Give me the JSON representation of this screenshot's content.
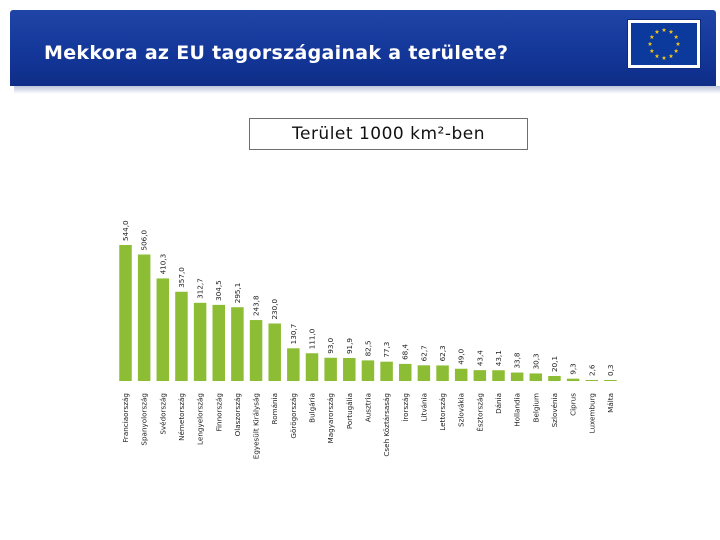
{
  "header": {
    "title": "Mekkora az EU tagországainak a területe?",
    "flag_icon": "eu-flag-icon"
  },
  "colors": {
    "header_blue": "#14379a",
    "bar_green": "#8cbd35",
    "flag_star": "#f2c417",
    "flag_blue": "#0b3a9c"
  },
  "chart_data": {
    "type": "bar",
    "title": "Terület 1000 km²-ben",
    "categories": [
      "Franciaország",
      "Spanyolország",
      "Svédország",
      "Németország",
      "Lengyelország",
      "Finnország",
      "Olaszország",
      "Egyesült Királyság",
      "Románia",
      "Görögország",
      "Bulgária",
      "Magyarország",
      "Portugália",
      "Ausztria",
      "Cseh Köztársaság",
      "Írország",
      "Litvánia",
      "Lettország",
      "Szlovákia",
      "Észtország",
      "Dánia",
      "Hollandia",
      "Belgium",
      "Szlovénia",
      "Ciprus",
      "Luxemburg",
      "Málta"
    ],
    "values": [
      544.0,
      506.0,
      410.3,
      357.0,
      312.7,
      304.5,
      295.1,
      243.8,
      230.0,
      130.7,
      111.0,
      93.0,
      91.9,
      82.5,
      77.3,
      68.4,
      62.7,
      62.3,
      49.0,
      43.4,
      43.1,
      33.8,
      30.3,
      20.1,
      9.3,
      2.6,
      0.3
    ],
    "value_labels": [
      "544,0",
      "506,0",
      "410,3",
      "357,0",
      "312,7",
      "304,5",
      "295,1",
      "243,8",
      "230,0",
      "130,7",
      "111,0",
      "93,0",
      "91,9",
      "82,5",
      "77,3",
      "68,4",
      "62,7",
      "62,3",
      "49,0",
      "43,4",
      "43,1",
      "33,8",
      "30,3",
      "20,1",
      "9,3",
      "2,6",
      "0,3"
    ],
    "ylim": [
      0,
      544
    ],
    "grid": false,
    "legend": "none"
  }
}
